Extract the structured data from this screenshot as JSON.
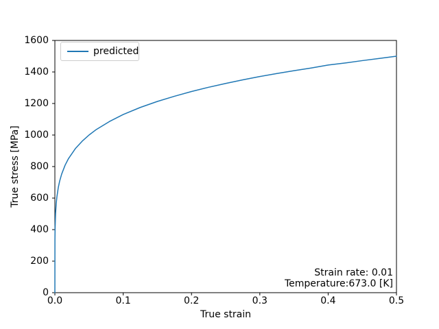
{
  "chart_data": {
    "type": "line",
    "title": "",
    "xlabel": "True strain",
    "ylabel": "True stress [MPa]",
    "xlim": [
      0.0,
      0.5
    ],
    "ylim": [
      0,
      1600
    ],
    "grid": false,
    "xticks": {
      "values": [
        0.0,
        0.1,
        0.2,
        0.3,
        0.4,
        0.5
      ],
      "labels": [
        "0.0",
        "0.1",
        "0.2",
        "0.3",
        "0.4",
        "0.5"
      ]
    },
    "yticks": {
      "values": [
        0,
        200,
        400,
        600,
        800,
        1000,
        1200,
        1400,
        1600
      ],
      "labels": [
        "0",
        "200",
        "400",
        "600",
        "800",
        "1000",
        "1200",
        "1400",
        "1600"
      ]
    },
    "legend": {
      "location": "upper left",
      "entries": [
        {
          "label": "predicted",
          "color": "#1f77b4"
        }
      ]
    },
    "annotations": [
      {
        "text": "Strain rate: 0.01",
        "align": "right",
        "position": "lower right"
      },
      {
        "text": "Temperature:673.0 [K]",
        "align": "right",
        "position": "lower right"
      }
    ],
    "series": [
      {
        "name": "predicted",
        "color": "#1f77b4",
        "x": [
          0,
          0.0001,
          0.0003,
          0.001,
          0.002,
          0.003,
          0.005,
          0.007,
          0.01,
          0.015,
          0.02,
          0.03,
          0.04,
          0.05,
          0.06,
          0.08,
          0.1,
          0.125,
          0.15,
          0.175,
          0.2,
          0.225,
          0.25,
          0.275,
          0.3,
          0.325,
          0.35,
          0.375,
          0.4,
          0.425,
          0.45,
          0.475,
          0.5
        ],
        "y": [
          0,
          335,
          406,
          502,
          567,
          609,
          667,
          708,
          753,
          809,
          851,
          914,
          961,
          1000,
          1033,
          1086,
          1130,
          1175,
          1213,
          1246,
          1276,
          1303,
          1327,
          1350,
          1371,
          1390,
          1408,
          1425,
          1444,
          1457,
          1472,
          1486,
          1500
        ]
      }
    ]
  }
}
